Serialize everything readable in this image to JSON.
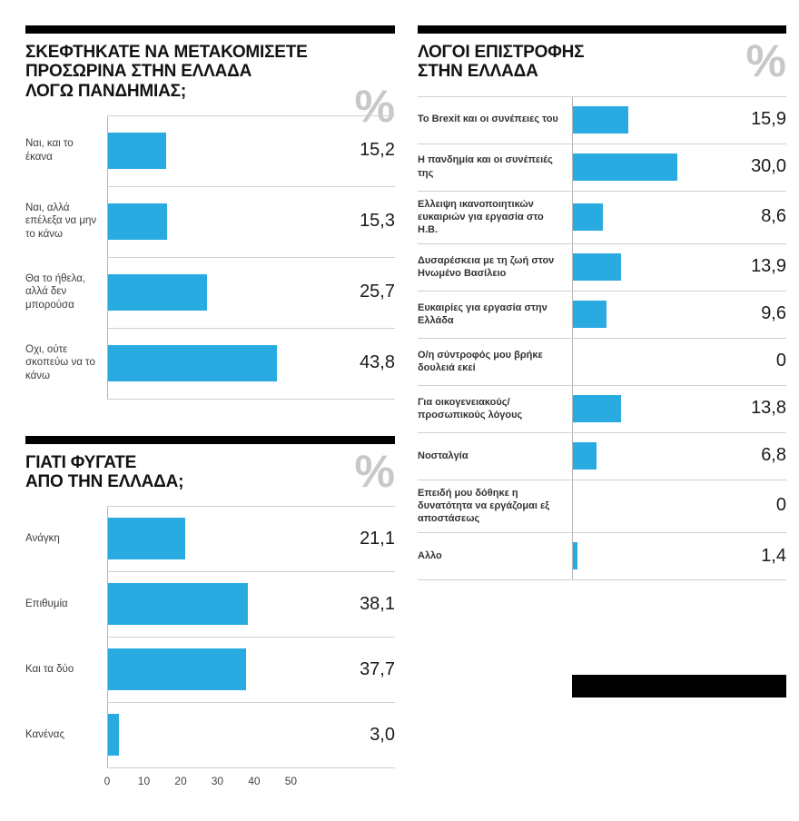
{
  "colors": {
    "bar": "#29abe2",
    "rule": "#000000",
    "percent_sign": "#c8c8c8",
    "separator": "#cfcfcf",
    "axis_line": "#b5b5b5",
    "title_text": "#121212",
    "label_text": "#3c3c3c",
    "value_text": "#1a1a1a"
  },
  "chart_data": [
    {
      "id": "pandemic-temporary-move",
      "type": "bar",
      "orientation": "horizontal",
      "title": "ΣΚΕΦΤΗΚΑΤΕ ΝΑ ΜΕΤΑΚΟΜΙΣΕΤΕ\nΠΡΟΣΩΡΙΝΑ ΣΤΗΝ ΕΛΛΑΔΑ\nΛΟΓΩ ΠΑΝΔΗΜΙΑΣ;",
      "unit": "%",
      "categories": [
        "Ναι, και το έκανα",
        "Ναι, αλλά επέλεξα να μην το κάνω",
        "Θα το ήθελα, αλλά δεν μπορούσα",
        "Οχι, ούτε σκοπεύω να το κάνω"
      ],
      "values": [
        15.2,
        15.3,
        25.7,
        43.8
      ],
      "value_labels": [
        "15,2",
        "15,3",
        "25,7",
        "43,8"
      ],
      "x_max": 59,
      "grid": false,
      "legend": false
    },
    {
      "id": "why-left-greece",
      "type": "bar",
      "orientation": "horizontal",
      "title": "ΓΙΑΤΙ ΦΥΓΑΤΕ\nΑΠΟ ΤΗΝ ΕΛΛΑΔΑ;",
      "unit": "%",
      "categories": [
        "Ανάγκη",
        "Επιθυμία",
        "Και τα δύο",
        "Κανένας"
      ],
      "values": [
        21.1,
        38.1,
        37.7,
        3.0
      ],
      "value_labels": [
        "21,1",
        "38,1",
        "37,7",
        "3,0"
      ],
      "x_max": 62,
      "x_ticks": [
        0,
        10,
        20,
        30,
        40,
        50
      ],
      "grid": false,
      "legend": false
    },
    {
      "id": "reasons-for-return",
      "type": "bar",
      "orientation": "horizontal",
      "title": "ΛΟΓΟΙ ΕΠΙΣΤΡΟΦΗΣ\nΣΤΗΝ ΕΛΛΑΔΑ",
      "unit": "%",
      "categories": [
        "Το Brexit και οι συνέπειες του",
        "Η πανδημία και οι συνέπειές της",
        "Ελλειψη ικανοποιητικών ευκαιριών για εργασία στο Η.Β.",
        "Δυσαρέσκεια με τη ζωή στον Ηνωμένο Βασίλειο",
        "Ευκαιρίες για εργασία στην Ελλάδα",
        "Ο/η σύντροφός μου βρήκε δουλειά εκεί",
        "Για οικογενειακούς/ προσωπικούς λόγους",
        "Νοσταλγία",
        "Επειδή μου δόθηκε η δυνατότητα να εργάζομαι εξ αποστάσεως",
        "Αλλο"
      ],
      "values": [
        15.9,
        30.0,
        8.6,
        13.9,
        9.6,
        0,
        13.8,
        6.8,
        0,
        1.4
      ],
      "value_labels": [
        "15,9",
        "30,0",
        "8,6",
        "13,9",
        "9,6",
        "0",
        "13,8",
        "6,8",
        "0",
        "1,4"
      ],
      "x_max": 44,
      "grid": false,
      "legend": false
    }
  ]
}
